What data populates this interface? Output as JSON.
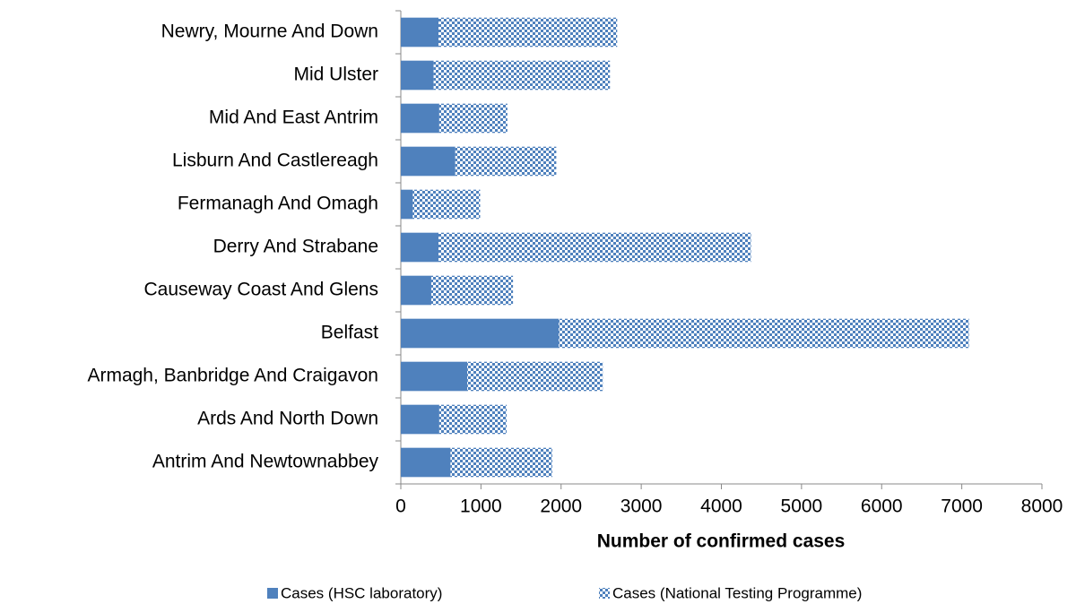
{
  "chart_data": {
    "type": "stacked-barh",
    "x_label": "Number of confirmed cases",
    "categories": [
      "Newry, Mourne And Down",
      "Mid Ulster",
      "Mid And East Antrim",
      "Lisburn And Castlereagh",
      "Fermanagh And Omagh",
      "Derry And Strabane",
      "Causeway Coast And Glens",
      "Belfast",
      "Armagh, Banbridge And Craigavon",
      "Ards And North Down",
      "Antrim And Newtownabbey"
    ],
    "series": [
      {
        "name": "Cases (HSC laboratory)",
        "color": "#4f81bd",
        "fill_pattern": "solid",
        "values": [
          470,
          410,
          480,
          680,
          150,
          470,
          380,
          1970,
          830,
          480,
          620
        ]
      },
      {
        "name": "Cases (National Testing Programme)",
        "color": "#4f81bd",
        "fill_pattern": "checkered",
        "values": [
          2230,
          2200,
          850,
          1260,
          840,
          3900,
          1020,
          5120,
          1690,
          840,
          1270
        ]
      }
    ],
    "xlim": [
      0,
      8000
    ],
    "xticks": [
      0,
      1000,
      2000,
      3000,
      4000,
      5000,
      6000,
      7000,
      8000
    ],
    "legend": "bottom"
  }
}
